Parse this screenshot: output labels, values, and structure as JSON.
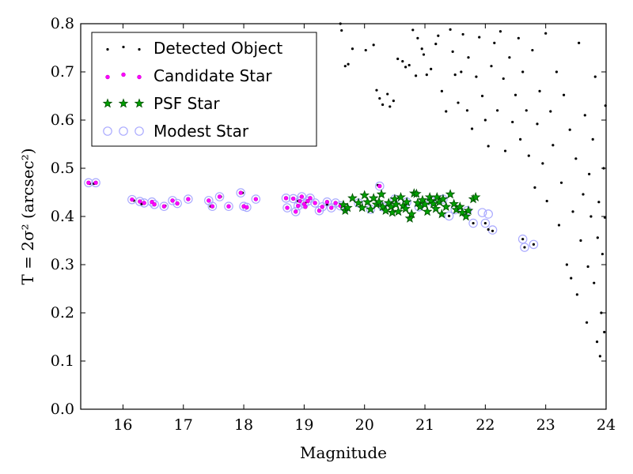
{
  "chart_data": {
    "type": "scatter",
    "title": "",
    "xlabel": "Magnitude",
    "ylabel": "T = 2σ² (arcsec²)",
    "xlim": [
      15.3,
      24.0
    ],
    "ylim": [
      0.0,
      0.8
    ],
    "xticks": [
      "16",
      "17",
      "18",
      "19",
      "20",
      "21",
      "22",
      "23",
      "24"
    ],
    "yticks": [
      "0.0",
      "0.1",
      "0.2",
      "0.3",
      "0.4",
      "0.5",
      "0.6",
      "0.7",
      "0.8"
    ],
    "grid": false,
    "legend_position": "top-left",
    "series": [
      {
        "name": "Detected Object",
        "marker": "dot",
        "color": "#000000",
        "points": [
          [
            15.45,
            0.468
          ],
          [
            15.52,
            0.468
          ],
          [
            16.18,
            0.433
          ],
          [
            16.31,
            0.426
          ],
          [
            16.7,
            0.422
          ],
          [
            16.9,
            0.428
          ],
          [
            17.45,
            0.421
          ],
          [
            17.62,
            0.441
          ],
          [
            17.98,
            0.449
          ],
          [
            18.01,
            0.42
          ],
          [
            18.72,
            0.419
          ],
          [
            18.9,
            0.432
          ],
          [
            19.02,
            0.428
          ],
          [
            19.38,
            0.425
          ],
          [
            19.52,
            0.428
          ],
          [
            20.22,
            0.465
          ],
          [
            21.4,
            0.401
          ],
          [
            21.8,
            0.386
          ],
          [
            22.0,
            0.386
          ],
          [
            22.05,
            0.373
          ],
          [
            22.12,
            0.37
          ],
          [
            22.62,
            0.353
          ],
          [
            22.65,
            0.336
          ],
          [
            22.8,
            0.342
          ],
          [
            19.6,
            0.8
          ],
          [
            19.62,
            0.786
          ],
          [
            19.68,
            0.712
          ],
          [
            19.73,
            0.716
          ],
          [
            19.8,
            0.748
          ],
          [
            20.02,
            0.745
          ],
          [
            20.15,
            0.756
          ],
          [
            20.2,
            0.662
          ],
          [
            20.25,
            0.645
          ],
          [
            20.3,
            0.632
          ],
          [
            20.38,
            0.654
          ],
          [
            20.42,
            0.628
          ],
          [
            20.48,
            0.64
          ],
          [
            20.55,
            0.727
          ],
          [
            20.63,
            0.722
          ],
          [
            20.68,
            0.71
          ],
          [
            20.74,
            0.714
          ],
          [
            20.8,
            0.787
          ],
          [
            20.85,
            0.692
          ],
          [
            20.88,
            0.77
          ],
          [
            20.95,
            0.748
          ],
          [
            20.98,
            0.736
          ],
          [
            21.03,
            0.694
          ],
          [
            21.1,
            0.706
          ],
          [
            21.18,
            0.758
          ],
          [
            21.22,
            0.775
          ],
          [
            21.28,
            0.66
          ],
          [
            21.35,
            0.618
          ],
          [
            21.42,
            0.788
          ],
          [
            21.46,
            0.742
          ],
          [
            21.5,
            0.694
          ],
          [
            21.55,
            0.636
          ],
          [
            21.6,
            0.7
          ],
          [
            21.63,
            0.778
          ],
          [
            21.7,
            0.62
          ],
          [
            21.72,
            0.73
          ],
          [
            21.78,
            0.582
          ],
          [
            21.85,
            0.69
          ],
          [
            21.9,
            0.772
          ],
          [
            21.95,
            0.65
          ],
          [
            22.0,
            0.6
          ],
          [
            22.05,
            0.546
          ],
          [
            22.1,
            0.712
          ],
          [
            22.15,
            0.76
          ],
          [
            22.2,
            0.62
          ],
          [
            22.25,
            0.784
          ],
          [
            22.3,
            0.686
          ],
          [
            22.33,
            0.536
          ],
          [
            22.4,
            0.73
          ],
          [
            22.45,
            0.596
          ],
          [
            22.5,
            0.652
          ],
          [
            22.55,
            0.77
          ],
          [
            22.58,
            0.56
          ],
          [
            22.62,
            0.7
          ],
          [
            22.68,
            0.62
          ],
          [
            22.72,
            0.526
          ],
          [
            22.78,
            0.745
          ],
          [
            22.82,
            0.46
          ],
          [
            22.86,
            0.592
          ],
          [
            22.9,
            0.66
          ],
          [
            22.95,
            0.51
          ],
          [
            23.0,
            0.78
          ],
          [
            23.02,
            0.432
          ],
          [
            23.08,
            0.618
          ],
          [
            23.12,
            0.548
          ],
          [
            23.18,
            0.7
          ],
          [
            23.22,
            0.382
          ],
          [
            23.26,
            0.47
          ],
          [
            23.3,
            0.652
          ],
          [
            23.35,
            0.3
          ],
          [
            23.4,
            0.58
          ],
          [
            23.42,
            0.272
          ],
          [
            23.45,
            0.41
          ],
          [
            23.5,
            0.52
          ],
          [
            23.52,
            0.238
          ],
          [
            23.55,
            0.76
          ],
          [
            23.58,
            0.35
          ],
          [
            23.62,
            0.446
          ],
          [
            23.65,
            0.61
          ],
          [
            23.68,
            0.18
          ],
          [
            23.7,
            0.296
          ],
          [
            23.72,
            0.488
          ],
          [
            23.75,
            0.4
          ],
          [
            23.78,
            0.56
          ],
          [
            23.8,
            0.262
          ],
          [
            23.82,
            0.69
          ],
          [
            23.85,
            0.14
          ],
          [
            23.86,
            0.356
          ],
          [
            23.88,
            0.43
          ],
          [
            23.9,
            0.11
          ],
          [
            23.92,
            0.2
          ],
          [
            23.94,
            0.322
          ],
          [
            23.96,
            0.5
          ],
          [
            23.97,
            0.16
          ],
          [
            23.98,
            0.398
          ],
          [
            23.99,
            0.63
          ]
        ]
      },
      {
        "name": "Candidate Star",
        "marker": "magenta-dot",
        "color": "#ff00ff",
        "points": [
          [
            15.43,
            0.47
          ],
          [
            15.55,
            0.47
          ],
          [
            16.15,
            0.435
          ],
          [
            16.28,
            0.431
          ],
          [
            16.35,
            0.428
          ],
          [
            16.48,
            0.43
          ],
          [
            16.52,
            0.425
          ],
          [
            16.68,
            0.421
          ],
          [
            16.82,
            0.433
          ],
          [
            16.9,
            0.427
          ],
          [
            17.08,
            0.436
          ],
          [
            17.42,
            0.433
          ],
          [
            17.48,
            0.421
          ],
          [
            17.6,
            0.441
          ],
          [
            17.75,
            0.421
          ],
          [
            17.95,
            0.449
          ],
          [
            18.0,
            0.421
          ],
          [
            18.05,
            0.419
          ],
          [
            18.2,
            0.436
          ],
          [
            18.7,
            0.438
          ],
          [
            18.72,
            0.418
          ],
          [
            18.82,
            0.437
          ],
          [
            18.86,
            0.41
          ],
          [
            18.9,
            0.422
          ],
          [
            18.93,
            0.432
          ],
          [
            18.96,
            0.441
          ],
          [
            19.0,
            0.426
          ],
          [
            19.02,
            0.42
          ],
          [
            19.06,
            0.432
          ],
          [
            19.1,
            0.438
          ],
          [
            19.18,
            0.428
          ],
          [
            19.25,
            0.412
          ],
          [
            19.3,
            0.42
          ],
          [
            19.38,
            0.43
          ],
          [
            19.45,
            0.418
          ],
          [
            19.52,
            0.428
          ],
          [
            19.6,
            0.422
          ],
          [
            20.25,
            0.463
          ]
        ]
      },
      {
        "name": "PSF Star",
        "marker": "star",
        "color": "#008000",
        "points": [
          [
            19.65,
            0.424
          ],
          [
            19.68,
            0.412
          ],
          [
            19.72,
            0.418
          ],
          [
            19.8,
            0.438
          ],
          [
            19.9,
            0.428
          ],
          [
            19.96,
            0.418
          ],
          [
            20.0,
            0.444
          ],
          [
            20.05,
            0.43
          ],
          [
            20.1,
            0.415
          ],
          [
            20.15,
            0.438
          ],
          [
            20.2,
            0.425
          ],
          [
            20.24,
            0.43
          ],
          [
            20.28,
            0.446
          ],
          [
            20.3,
            0.42
          ],
          [
            20.35,
            0.412
          ],
          [
            20.4,
            0.428
          ],
          [
            20.44,
            0.42
          ],
          [
            20.46,
            0.408
          ],
          [
            20.5,
            0.436
          ],
          [
            20.52,
            0.425
          ],
          [
            20.56,
            0.41
          ],
          [
            20.6,
            0.44
          ],
          [
            20.64,
            0.422
          ],
          [
            20.68,
            0.416
          ],
          [
            20.7,
            0.43
          ],
          [
            20.75,
            0.396
          ],
          [
            20.78,
            0.405
          ],
          [
            20.82,
            0.448
          ],
          [
            20.86,
            0.447
          ],
          [
            20.88,
            0.428
          ],
          [
            20.92,
            0.42
          ],
          [
            20.96,
            0.434
          ],
          [
            21.0,
            0.425
          ],
          [
            21.04,
            0.41
          ],
          [
            21.08,
            0.44
          ],
          [
            21.1,
            0.432
          ],
          [
            21.14,
            0.426
          ],
          [
            21.18,
            0.416
          ],
          [
            21.2,
            0.44
          ],
          [
            21.24,
            0.43
          ],
          [
            21.28,
            0.405
          ],
          [
            21.3,
            0.436
          ],
          [
            21.35,
            0.42
          ],
          [
            21.42,
            0.446
          ],
          [
            21.48,
            0.426
          ],
          [
            21.52,
            0.414
          ],
          [
            21.58,
            0.42
          ],
          [
            21.62,
            0.408
          ],
          [
            21.68,
            0.4
          ],
          [
            21.72,
            0.412
          ],
          [
            21.8,
            0.436
          ],
          [
            21.84,
            0.44
          ]
        ]
      },
      {
        "name": "Modest Star",
        "marker": "open-circle",
        "color": "#aaaaff",
        "points": [
          [
            15.43,
            0.47
          ],
          [
            15.55,
            0.47
          ],
          [
            16.15,
            0.435
          ],
          [
            16.28,
            0.431
          ],
          [
            16.35,
            0.428
          ],
          [
            16.48,
            0.43
          ],
          [
            16.52,
            0.425
          ],
          [
            16.68,
            0.421
          ],
          [
            16.82,
            0.433
          ],
          [
            16.9,
            0.427
          ],
          [
            17.08,
            0.436
          ],
          [
            17.42,
            0.433
          ],
          [
            17.48,
            0.421
          ],
          [
            17.6,
            0.441
          ],
          [
            17.75,
            0.421
          ],
          [
            17.95,
            0.449
          ],
          [
            18.0,
            0.421
          ],
          [
            18.05,
            0.419
          ],
          [
            18.2,
            0.436
          ],
          [
            18.7,
            0.438
          ],
          [
            18.72,
            0.418
          ],
          [
            18.82,
            0.437
          ],
          [
            18.86,
            0.41
          ],
          [
            18.9,
            0.422
          ],
          [
            18.93,
            0.432
          ],
          [
            18.96,
            0.441
          ],
          [
            19.0,
            0.426
          ],
          [
            19.06,
            0.432
          ],
          [
            19.1,
            0.438
          ],
          [
            19.18,
            0.428
          ],
          [
            19.25,
            0.412
          ],
          [
            19.3,
            0.42
          ],
          [
            19.38,
            0.43
          ],
          [
            19.45,
            0.418
          ],
          [
            19.52,
            0.428
          ],
          [
            19.6,
            0.422
          ],
          [
            19.68,
            0.418
          ],
          [
            19.9,
            0.428
          ],
          [
            20.1,
            0.415
          ],
          [
            20.25,
            0.463
          ],
          [
            20.3,
            0.42
          ],
          [
            20.5,
            0.436
          ],
          [
            20.7,
            0.43
          ],
          [
            20.9,
            0.42
          ],
          [
            21.1,
            0.432
          ],
          [
            21.3,
            0.436
          ],
          [
            21.4,
            0.401
          ],
          [
            21.5,
            0.414
          ],
          [
            21.7,
            0.412
          ],
          [
            21.8,
            0.386
          ],
          [
            21.95,
            0.408
          ],
          [
            22.0,
            0.386
          ],
          [
            22.05,
            0.405
          ],
          [
            22.12,
            0.372
          ],
          [
            22.62,
            0.353
          ],
          [
            22.65,
            0.336
          ],
          [
            22.8,
            0.342
          ]
        ]
      }
    ]
  }
}
